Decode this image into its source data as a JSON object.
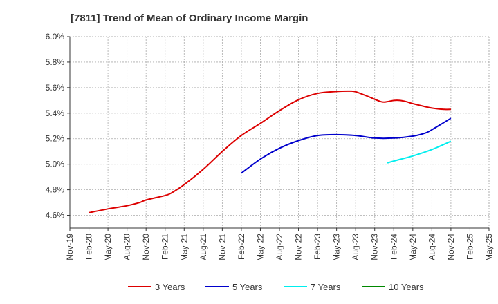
{
  "chart_data": {
    "type": "line",
    "title": "[7811]  Trend of Mean of Ordinary Income Margin",
    "xlabel": "",
    "ylabel": "",
    "ylim": [
      4.5,
      6.0
    ],
    "y_ticks": [
      "4.6%",
      "4.8%",
      "5.0%",
      "5.2%",
      "5.4%",
      "5.6%",
      "5.8%",
      "6.0%"
    ],
    "y_tick_values": [
      4.6,
      4.8,
      5.0,
      5.2,
      5.4,
      5.6,
      5.8,
      6.0
    ],
    "x_ticks": [
      "Nov-19",
      "Feb-20",
      "May-20",
      "Aug-20",
      "Nov-20",
      "Feb-21",
      "May-21",
      "Aug-21",
      "Nov-21",
      "Feb-22",
      "May-22",
      "Aug-22",
      "Nov-22",
      "Feb-23",
      "May-23",
      "Aug-23",
      "Nov-23",
      "Feb-24",
      "May-24",
      "Aug-24",
      "Nov-24",
      "Feb-25",
      "May-25"
    ],
    "grid": true,
    "legend_position": "bottom",
    "series": [
      {
        "name": "3 Years",
        "color": "#dd0000",
        "x": [
          "Feb-20",
          "May-20",
          "Aug-20",
          "Oct-20",
          "Nov-20",
          "Feb-21",
          "Mar-21",
          "May-21",
          "Aug-21",
          "Nov-21",
          "Feb-22",
          "May-22",
          "Aug-22",
          "Nov-22",
          "Feb-23",
          "May-23",
          "Jul-23",
          "Aug-23",
          "Oct-23",
          "Dec-23",
          "Jan-24",
          "Feb-24",
          "Mar-24",
          "Apr-24",
          "May-24",
          "Aug-24",
          "Oct-24",
          "Nov-24"
        ],
        "values": [
          4.62,
          4.65,
          4.675,
          4.7,
          4.72,
          4.755,
          4.775,
          4.84,
          4.96,
          5.1,
          5.225,
          5.32,
          5.42,
          5.505,
          5.555,
          5.57,
          5.573,
          5.568,
          5.53,
          5.49,
          5.49,
          5.5,
          5.5,
          5.49,
          5.475,
          5.44,
          5.43,
          5.43
        ]
      },
      {
        "name": "5 Years",
        "color": "#0000cc",
        "x": [
          "Feb-22",
          "May-22",
          "Aug-22",
          "Nov-22",
          "Feb-23",
          "May-23",
          "Aug-23",
          "Nov-23",
          "Feb-24",
          "May-24",
          "Jul-24",
          "Aug-24",
          "Nov-24"
        ],
        "values": [
          4.93,
          5.04,
          5.125,
          5.185,
          5.225,
          5.232,
          5.225,
          5.205,
          5.205,
          5.22,
          5.245,
          5.27,
          5.36
        ]
      },
      {
        "name": "7 Years",
        "color": "#00eeee",
        "x": [
          "Jan-24",
          "Feb-24",
          "May-24",
          "Aug-24",
          "Nov-24"
        ],
        "values": [
          5.01,
          5.025,
          5.065,
          5.115,
          5.18
        ]
      },
      {
        "name": "10 Years",
        "color": "#008800",
        "x": [],
        "values": []
      }
    ]
  }
}
